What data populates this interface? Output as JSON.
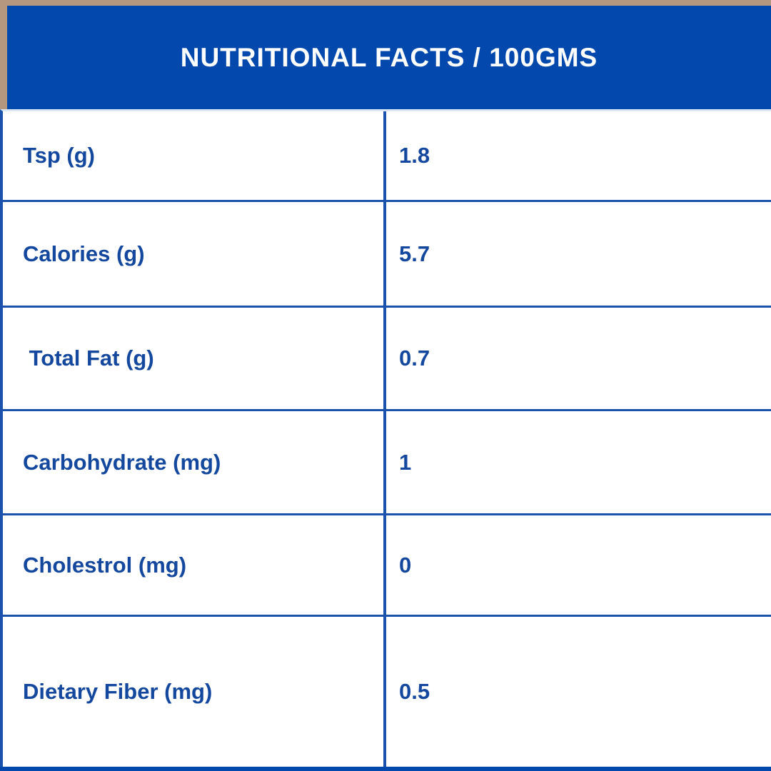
{
  "header": {
    "title": "NUTRITIONAL FACTS / 100GMS"
  },
  "table": {
    "rows": [
      {
        "label": "Tsp (g)",
        "value": "1.8"
      },
      {
        "label": "Calories (g)",
        "value": "5.7"
      },
      {
        "label": " Total Fat (g)",
        "value": "0.7"
      },
      {
        "label": "Carbohydrate (mg)",
        "value": "1"
      },
      {
        "label": "Cholestrol (mg)",
        "value": "0"
      },
      {
        "label": "Dietary Fiber (mg)",
        "value": "0.5"
      }
    ]
  },
  "colors": {
    "header_background": "#0349AD",
    "border_blue": "#1A52AE",
    "text_blue": "#14489E",
    "tan_accent": "#B4977E",
    "bottom_bar": "#0349AD",
    "background": "#FFFFFF",
    "title_text": "#FFFFFF"
  }
}
